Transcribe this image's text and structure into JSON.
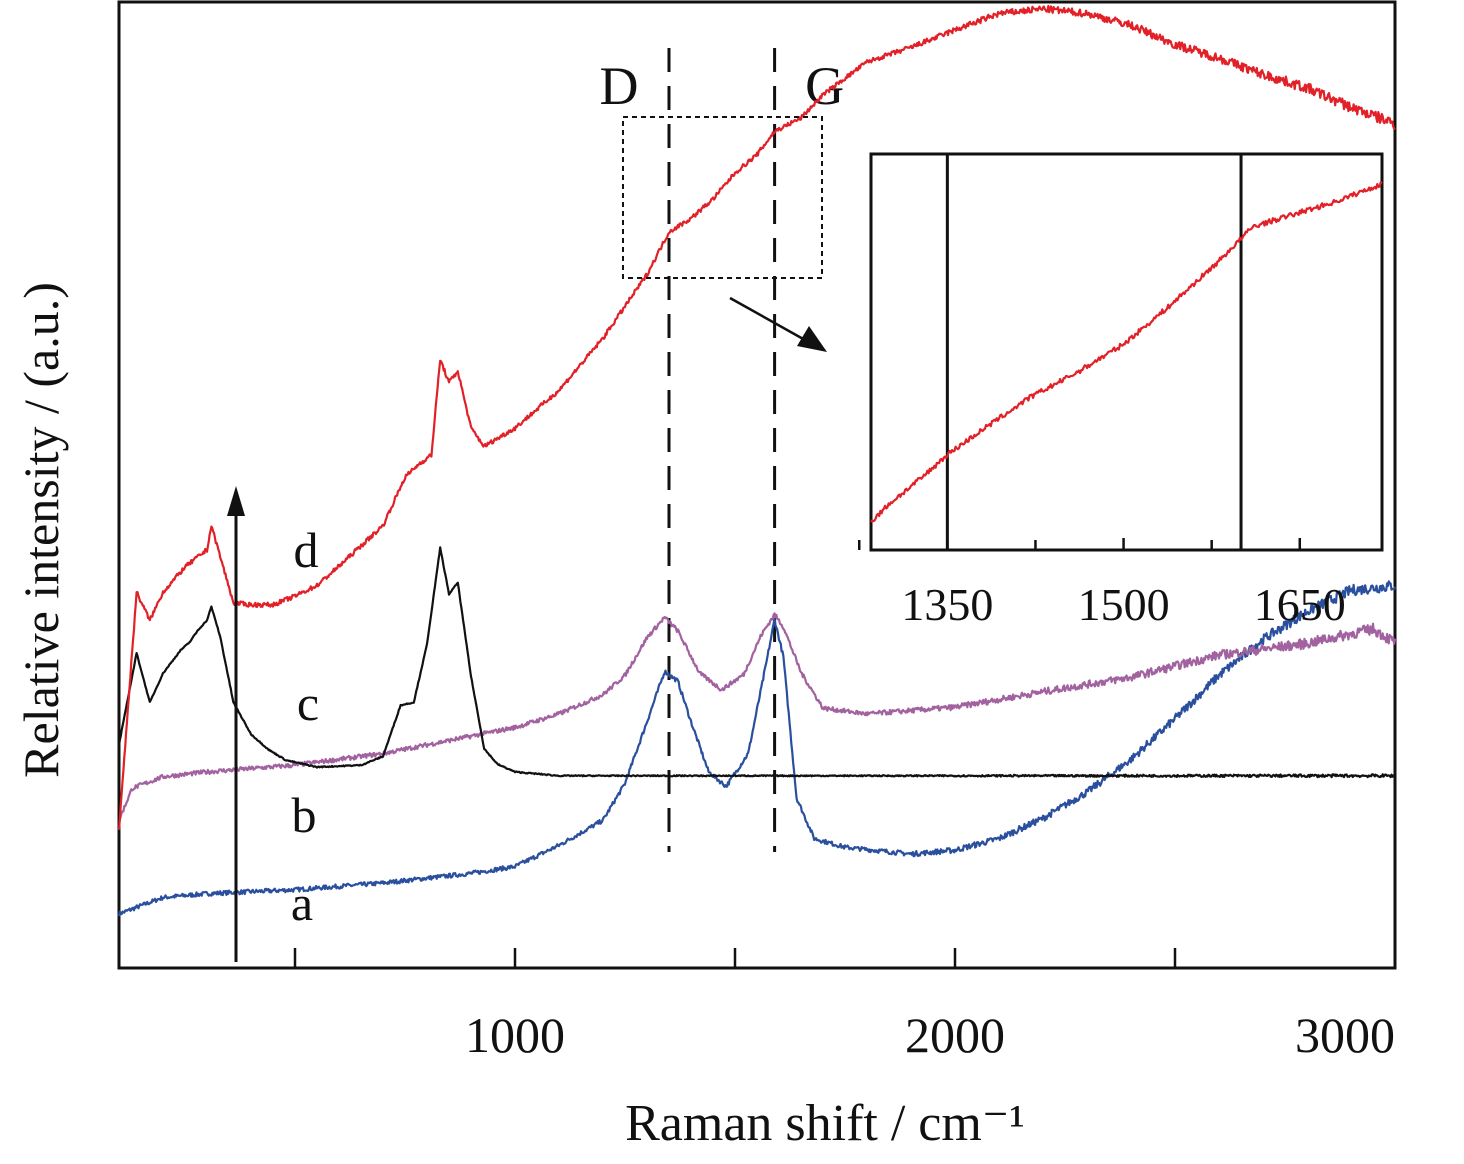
{
  "chart_data": {
    "type": "line",
    "xlabel": "Raman shift / cm⁻¹",
    "ylabel": "Relative intensity / (a.u.)",
    "xlim": [
      100,
      3000
    ],
    "ylim": [
      0,
      100
    ],
    "x_ticks_major": [
      1000,
      2000,
      3000
    ],
    "x_ticks_minor": [
      500,
      1500,
      2500
    ],
    "y_tick_labels": false,
    "grid": false,
    "band_markers": [
      {
        "label": "D",
        "x": 1350
      },
      {
        "label": "G",
        "x": 1590
      }
    ],
    "arrow_note": "upward arrow indicating increasing order a → d",
    "zoom_box": {
      "x_range": [
        1250,
        1700
      ],
      "y_range": [
        70.9,
        87.6
      ]
    },
    "series": [
      {
        "name": "a",
        "color": "#2a4f9e",
        "points": [
          [
            100,
            5.6
          ],
          [
            200,
            7.3
          ],
          [
            300,
            7.7
          ],
          [
            500,
            8.1
          ],
          [
            700,
            8.8
          ],
          [
            900,
            9.8
          ],
          [
            1000,
            10.5
          ],
          [
            1100,
            12.7
          ],
          [
            1200,
            15.3
          ],
          [
            1250,
            19.1
          ],
          [
            1300,
            25.5
          ],
          [
            1340,
            30.7
          ],
          [
            1370,
            29.7
          ],
          [
            1400,
            25.5
          ],
          [
            1440,
            20.3
          ],
          [
            1480,
            18.8
          ],
          [
            1530,
            22.2
          ],
          [
            1570,
            31.3
          ],
          [
            1590,
            36.1
          ],
          [
            1610,
            32.2
          ],
          [
            1640,
            17.6
          ],
          [
            1680,
            13.4
          ],
          [
            1750,
            12.5
          ],
          [
            1900,
            11.8
          ],
          [
            2000,
            12.2
          ],
          [
            2100,
            13.4
          ],
          [
            2200,
            15.5
          ],
          [
            2300,
            18.2
          ],
          [
            2400,
            21.6
          ],
          [
            2500,
            25.8
          ],
          [
            2600,
            30.3
          ],
          [
            2700,
            34.0
          ],
          [
            2800,
            36.9
          ],
          [
            2900,
            39.1
          ],
          [
            3000,
            39.6
          ]
        ]
      },
      {
        "name": "b",
        "color": "#a262a0",
        "points": [
          [
            100,
            15.3
          ],
          [
            130,
            18.6
          ],
          [
            200,
            19.8
          ],
          [
            300,
            20.3
          ],
          [
            500,
            21.0
          ],
          [
            700,
            22.2
          ],
          [
            900,
            24.0
          ],
          [
            1000,
            24.9
          ],
          [
            1100,
            26.3
          ],
          [
            1200,
            28.3
          ],
          [
            1250,
            30.3
          ],
          [
            1300,
            34.2
          ],
          [
            1340,
            36.3
          ],
          [
            1370,
            34.9
          ],
          [
            1420,
            30.5
          ],
          [
            1470,
            28.8
          ],
          [
            1520,
            30.4
          ],
          [
            1560,
            34.5
          ],
          [
            1590,
            36.6
          ],
          [
            1610,
            35.3
          ],
          [
            1650,
            30.6
          ],
          [
            1700,
            26.9
          ],
          [
            1800,
            26.3
          ],
          [
            2000,
            27.0
          ],
          [
            2200,
            28.6
          ],
          [
            2400,
            30.1
          ],
          [
            2600,
            32.4
          ],
          [
            2800,
            33.6
          ],
          [
            2900,
            34.6
          ],
          [
            2950,
            35.1
          ],
          [
            3000,
            33.7
          ]
        ]
      },
      {
        "name": "c",
        "color": "#111111",
        "points": [
          [
            100,
            23.1
          ],
          [
            140,
            32.6
          ],
          [
            170,
            27.5
          ],
          [
            200,
            30.5
          ],
          [
            240,
            32.9
          ],
          [
            260,
            33.7
          ],
          [
            280,
            35.0
          ],
          [
            300,
            36.0
          ],
          [
            310,
            37.4
          ],
          [
            330,
            34.3
          ],
          [
            360,
            27.5
          ],
          [
            400,
            24.2
          ],
          [
            440,
            22.6
          ],
          [
            480,
            21.5
          ],
          [
            550,
            20.8
          ],
          [
            650,
            21.0
          ],
          [
            700,
            21.9
          ],
          [
            740,
            27.2
          ],
          [
            770,
            27.5
          ],
          [
            800,
            33.5
          ],
          [
            830,
            43.5
          ],
          [
            850,
            38.7
          ],
          [
            870,
            39.9
          ],
          [
            900,
            30.2
          ],
          [
            930,
            22.7
          ],
          [
            960,
            21.1
          ],
          [
            1000,
            20.3
          ],
          [
            1100,
            19.9
          ],
          [
            1500,
            19.9
          ],
          [
            2000,
            19.9
          ],
          [
            2500,
            19.9
          ],
          [
            3000,
            19.9
          ]
        ]
      },
      {
        "name": "d",
        "color": "#e12028",
        "points": [
          [
            100,
            14.4
          ],
          [
            140,
            38.9
          ],
          [
            170,
            36.0
          ],
          [
            200,
            38.9
          ],
          [
            250,
            41.5
          ],
          [
            300,
            43.3
          ],
          [
            310,
            45.8
          ],
          [
            330,
            42.6
          ],
          [
            360,
            37.8
          ],
          [
            400,
            37.6
          ],
          [
            450,
            37.6
          ],
          [
            500,
            38.5
          ],
          [
            550,
            39.6
          ],
          [
            600,
            41.6
          ],
          [
            650,
            43.7
          ],
          [
            700,
            45.8
          ],
          [
            750,
            50.8
          ],
          [
            780,
            52.1
          ],
          [
            810,
            53.1
          ],
          [
            830,
            63.0
          ],
          [
            850,
            60.6
          ],
          [
            870,
            61.8
          ],
          [
            900,
            55.9
          ],
          [
            930,
            54.0
          ],
          [
            1000,
            55.9
          ],
          [
            1100,
            59.8
          ],
          [
            1200,
            65.2
          ],
          [
            1300,
            71.8
          ],
          [
            1350,
            76.2
          ],
          [
            1400,
            77.6
          ],
          [
            1450,
            79.6
          ],
          [
            1500,
            82.3
          ],
          [
            1550,
            84.2
          ],
          [
            1590,
            86.6
          ],
          [
            1650,
            88.0
          ],
          [
            1700,
            90.4
          ],
          [
            1800,
            93.8
          ],
          [
            1900,
            95.3
          ],
          [
            2000,
            97.1
          ],
          [
            2100,
            98.8
          ],
          [
            2200,
            99.3
          ],
          [
            2300,
            98.8
          ],
          [
            2400,
            97.6
          ],
          [
            2500,
            95.6
          ],
          [
            2600,
            94.2
          ],
          [
            2700,
            92.5
          ],
          [
            2800,
            91.1
          ],
          [
            2900,
            89.1
          ],
          [
            3000,
            87.4
          ]
        ]
      }
    ],
    "inset": {
      "xlim": [
        1285,
        1720
      ],
      "x_ticks_labeled": [
        1350,
        1500,
        1650
      ],
      "x_ticks_minor": [
        1275,
        1425,
        1575
      ],
      "markers": [
        1350,
        1600
      ],
      "series": [
        {
          "name": "d",
          "color": "#e12028",
          "points": [
            [
              1285,
              5
            ],
            [
              1300,
              10
            ],
            [
              1330,
              18
            ],
            [
              1350,
              24
            ],
            [
              1380,
              31
            ],
            [
              1420,
              40
            ],
            [
              1460,
              47
            ],
            [
              1500,
              55
            ],
            [
              1540,
              66
            ],
            [
              1580,
              78
            ],
            [
              1610,
              88
            ],
            [
              1650,
              92
            ],
            [
              1680,
              95
            ],
            [
              1720,
              100
            ]
          ]
        }
      ]
    }
  }
}
